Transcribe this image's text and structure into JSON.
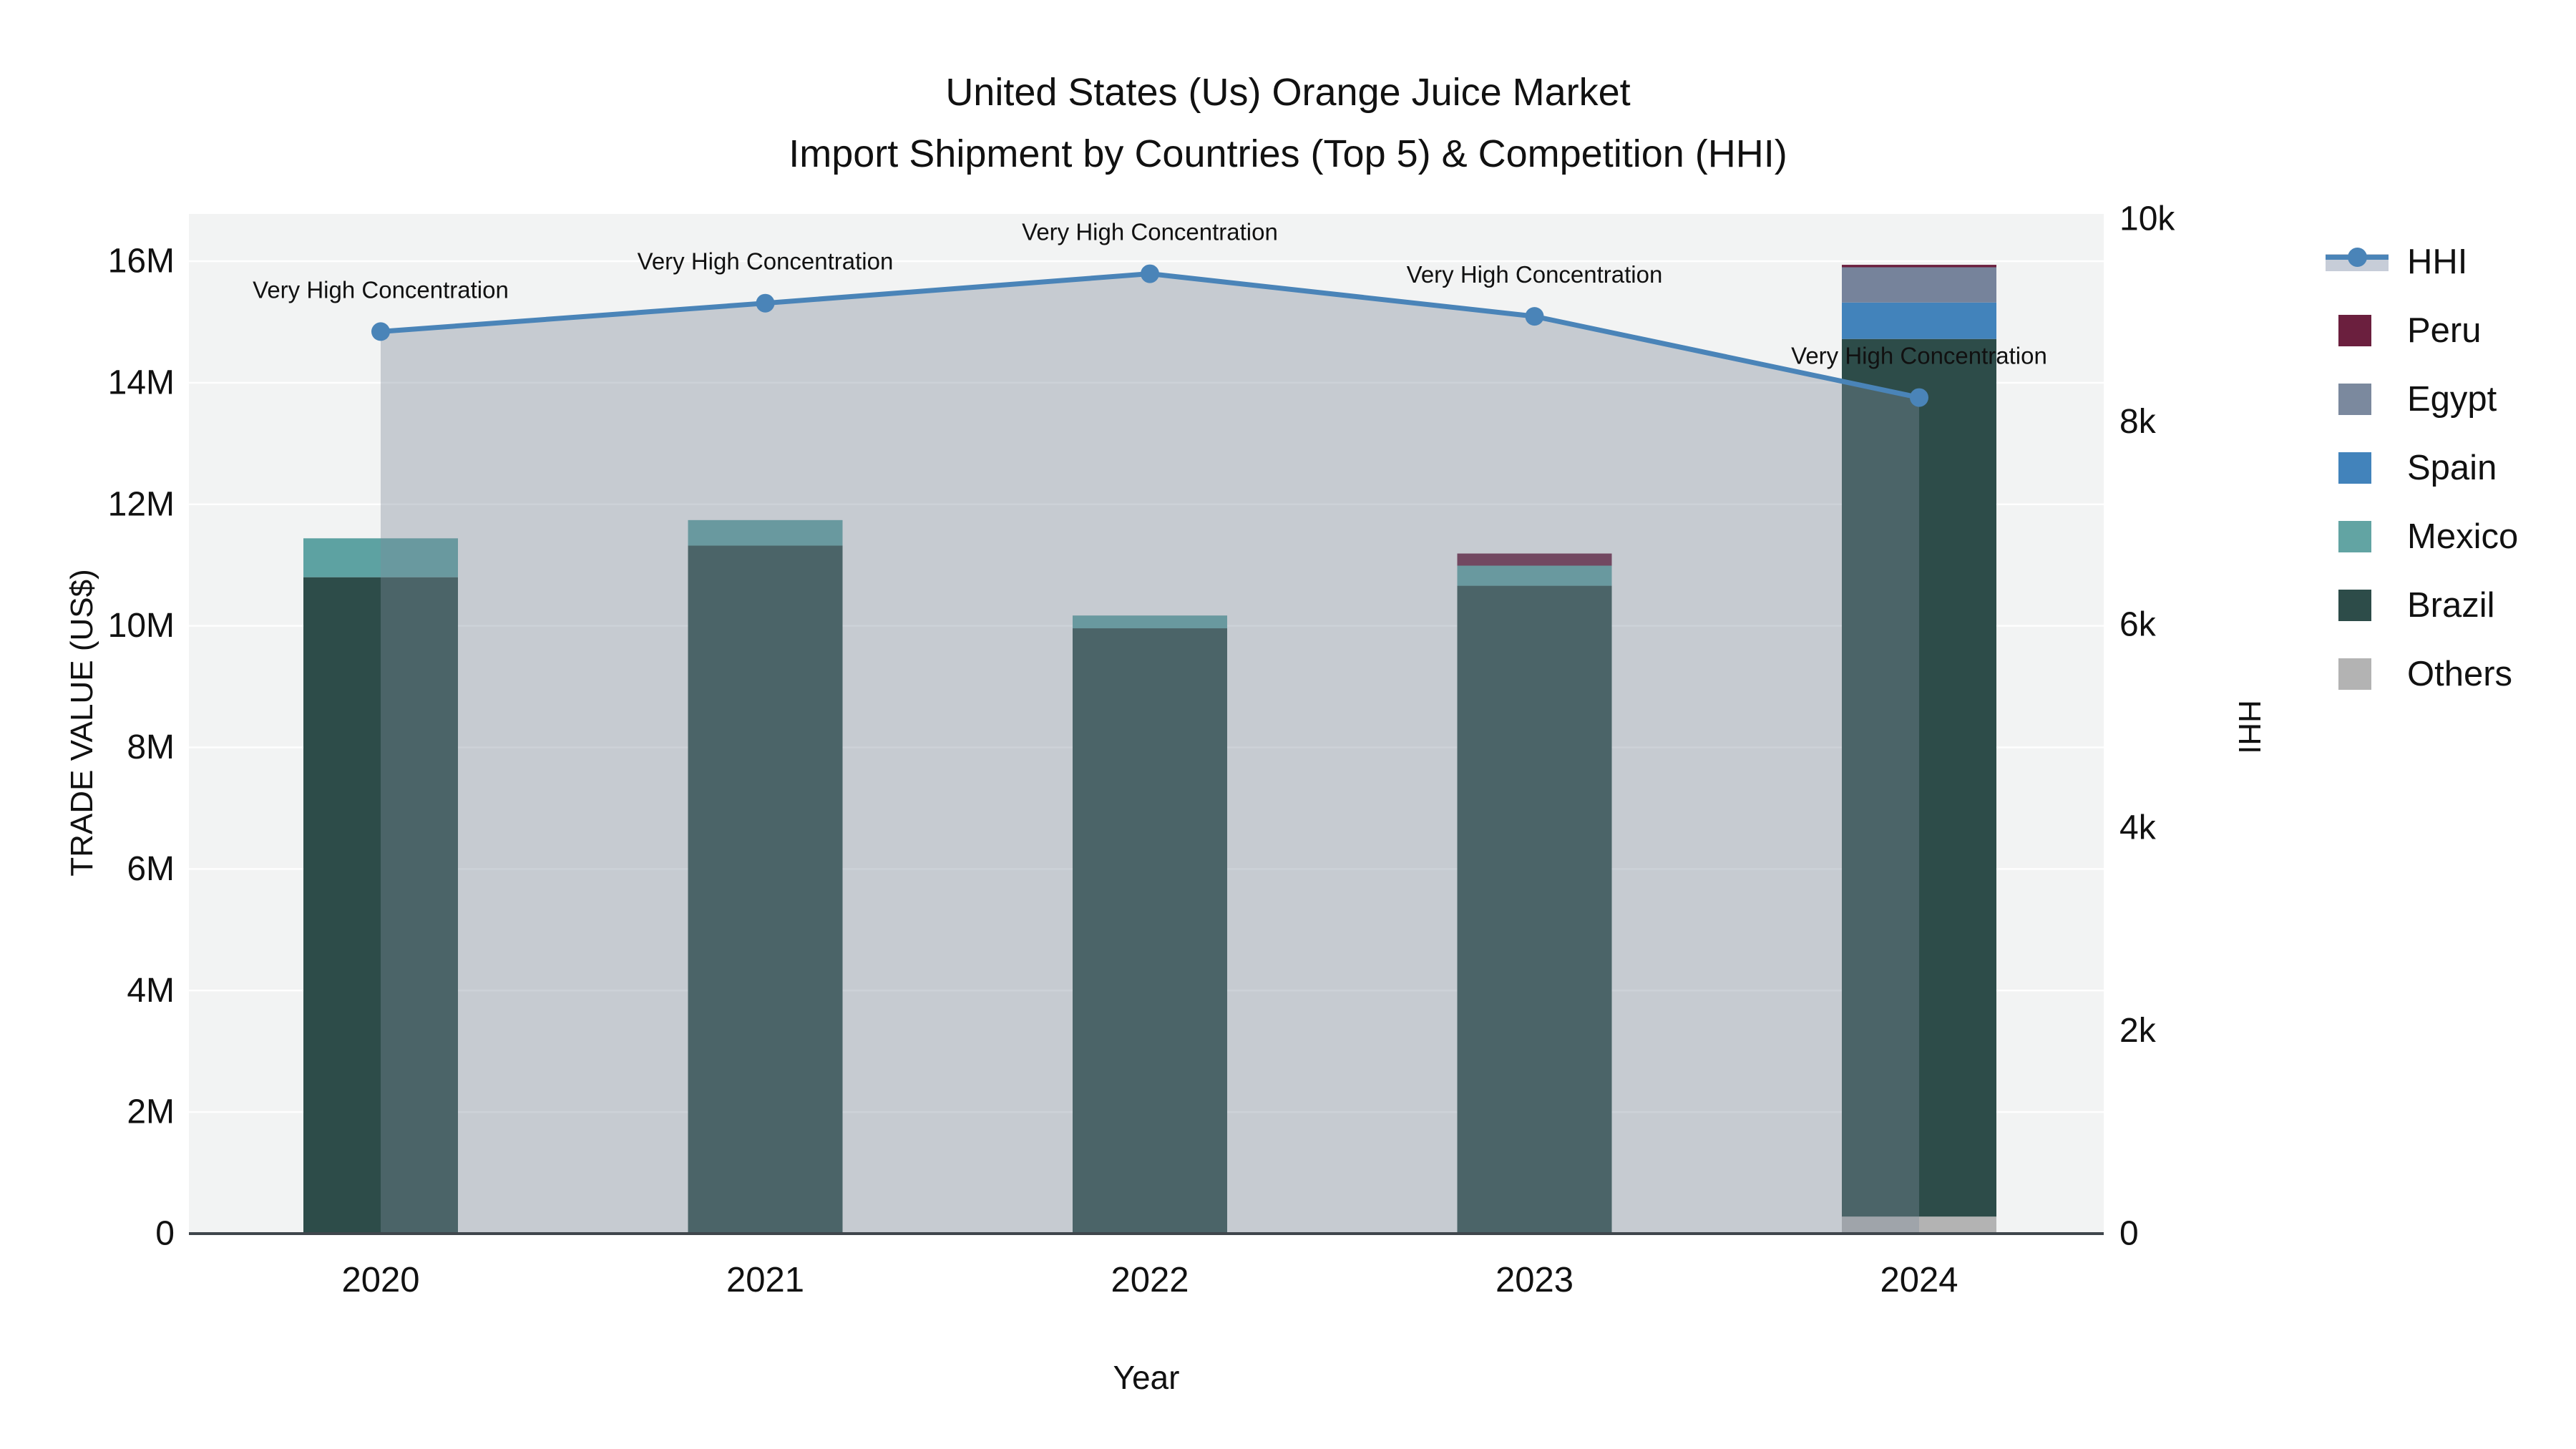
{
  "title": {
    "line1": "United States (Us) Orange Juice Market",
    "line2": "Import Shipment by Countries (Top 5) & Competition (HHI)"
  },
  "chart_data": {
    "type": "bar",
    "subtype": "stacked-bars-with-line",
    "categories": [
      "2020",
      "2021",
      "2022",
      "2023",
      "2024"
    ],
    "bar_series": [
      {
        "name": "Others",
        "color": "#b3b3b3",
        "values": [
          0,
          0,
          0,
          0,
          280000
        ]
      },
      {
        "name": "Brazil",
        "color": "#2d4c49",
        "values": [
          10800000,
          11320000,
          9960000,
          10660000,
          14440000
        ]
      },
      {
        "name": "Mexico",
        "color": "#5da2a2",
        "values": [
          640000,
          420000,
          210000,
          330000,
          0
        ]
      },
      {
        "name": "Spain",
        "color": "#4283bb",
        "values": [
          0,
          0,
          0,
          0,
          600000
        ]
      },
      {
        "name": "Egypt",
        "color": "#76839b",
        "values": [
          0,
          0,
          0,
          0,
          580000
        ]
      },
      {
        "name": "Peru",
        "color": "#6b1f3e",
        "values": [
          0,
          0,
          0,
          200000,
          40000
        ]
      }
    ],
    "line_series": {
      "name": "HHI",
      "color": "#4a84b8",
      "area_fill_color": "rgba(126,140,155,0.38)",
      "values": [
        8890,
        9170,
        9460,
        9040,
        8240
      ]
    },
    "annotations": [
      {
        "x": "2020",
        "text": "Very High Concentration"
      },
      {
        "x": "2021",
        "text": "Very High Concentration"
      },
      {
        "x": "2022",
        "text": "Very High Concentration"
      },
      {
        "x": "2023",
        "text": "Very High Concentration"
      },
      {
        "x": "2024",
        "text": "Very High Concentration"
      }
    ],
    "y_left": {
      "title": "TRADE VALUE (US$)",
      "tick_labels": [
        "0",
        "2M",
        "4M",
        "6M",
        "8M",
        "10M",
        "12M",
        "14M",
        "16M"
      ],
      "tick_values": [
        0,
        2000000,
        4000000,
        6000000,
        8000000,
        10000000,
        12000000,
        14000000,
        16000000
      ],
      "range": [
        0,
        16000000
      ],
      "grid": true
    },
    "y_right": {
      "title": "HHI",
      "tick_labels": [
        "0",
        "2k",
        "4k",
        "6k",
        "8k",
        "10k"
      ],
      "tick_values": [
        0,
        2000,
        4000,
        6000,
        8000,
        10000
      ],
      "range": [
        0,
        10000
      ],
      "grid": false
    },
    "x_axis": {
      "title": "Year"
    },
    "legend": {
      "position": "right",
      "items": [
        {
          "label": "HHI",
          "type": "line",
          "color": "#4a84b8"
        },
        {
          "label": "Peru",
          "type": "square",
          "color": "#6b1f3e"
        },
        {
          "label": "Egypt",
          "type": "square",
          "color": "#7b899e"
        },
        {
          "label": "Spain",
          "type": "square",
          "color": "#4283bb"
        },
        {
          "label": "Mexico",
          "type": "square",
          "color": "#62a4a3"
        },
        {
          "label": "Brazil",
          "type": "square",
          "color": "#2d4c49"
        },
        {
          "label": "Others",
          "type": "square",
          "color": "#b3b3b3"
        }
      ]
    },
    "style": {
      "plot_bg": "#f2f3f3",
      "grid_color": "rgba(255,255,255,0.9)",
      "baseline_color": "#3f464c",
      "text_color": "#111111"
    }
  }
}
